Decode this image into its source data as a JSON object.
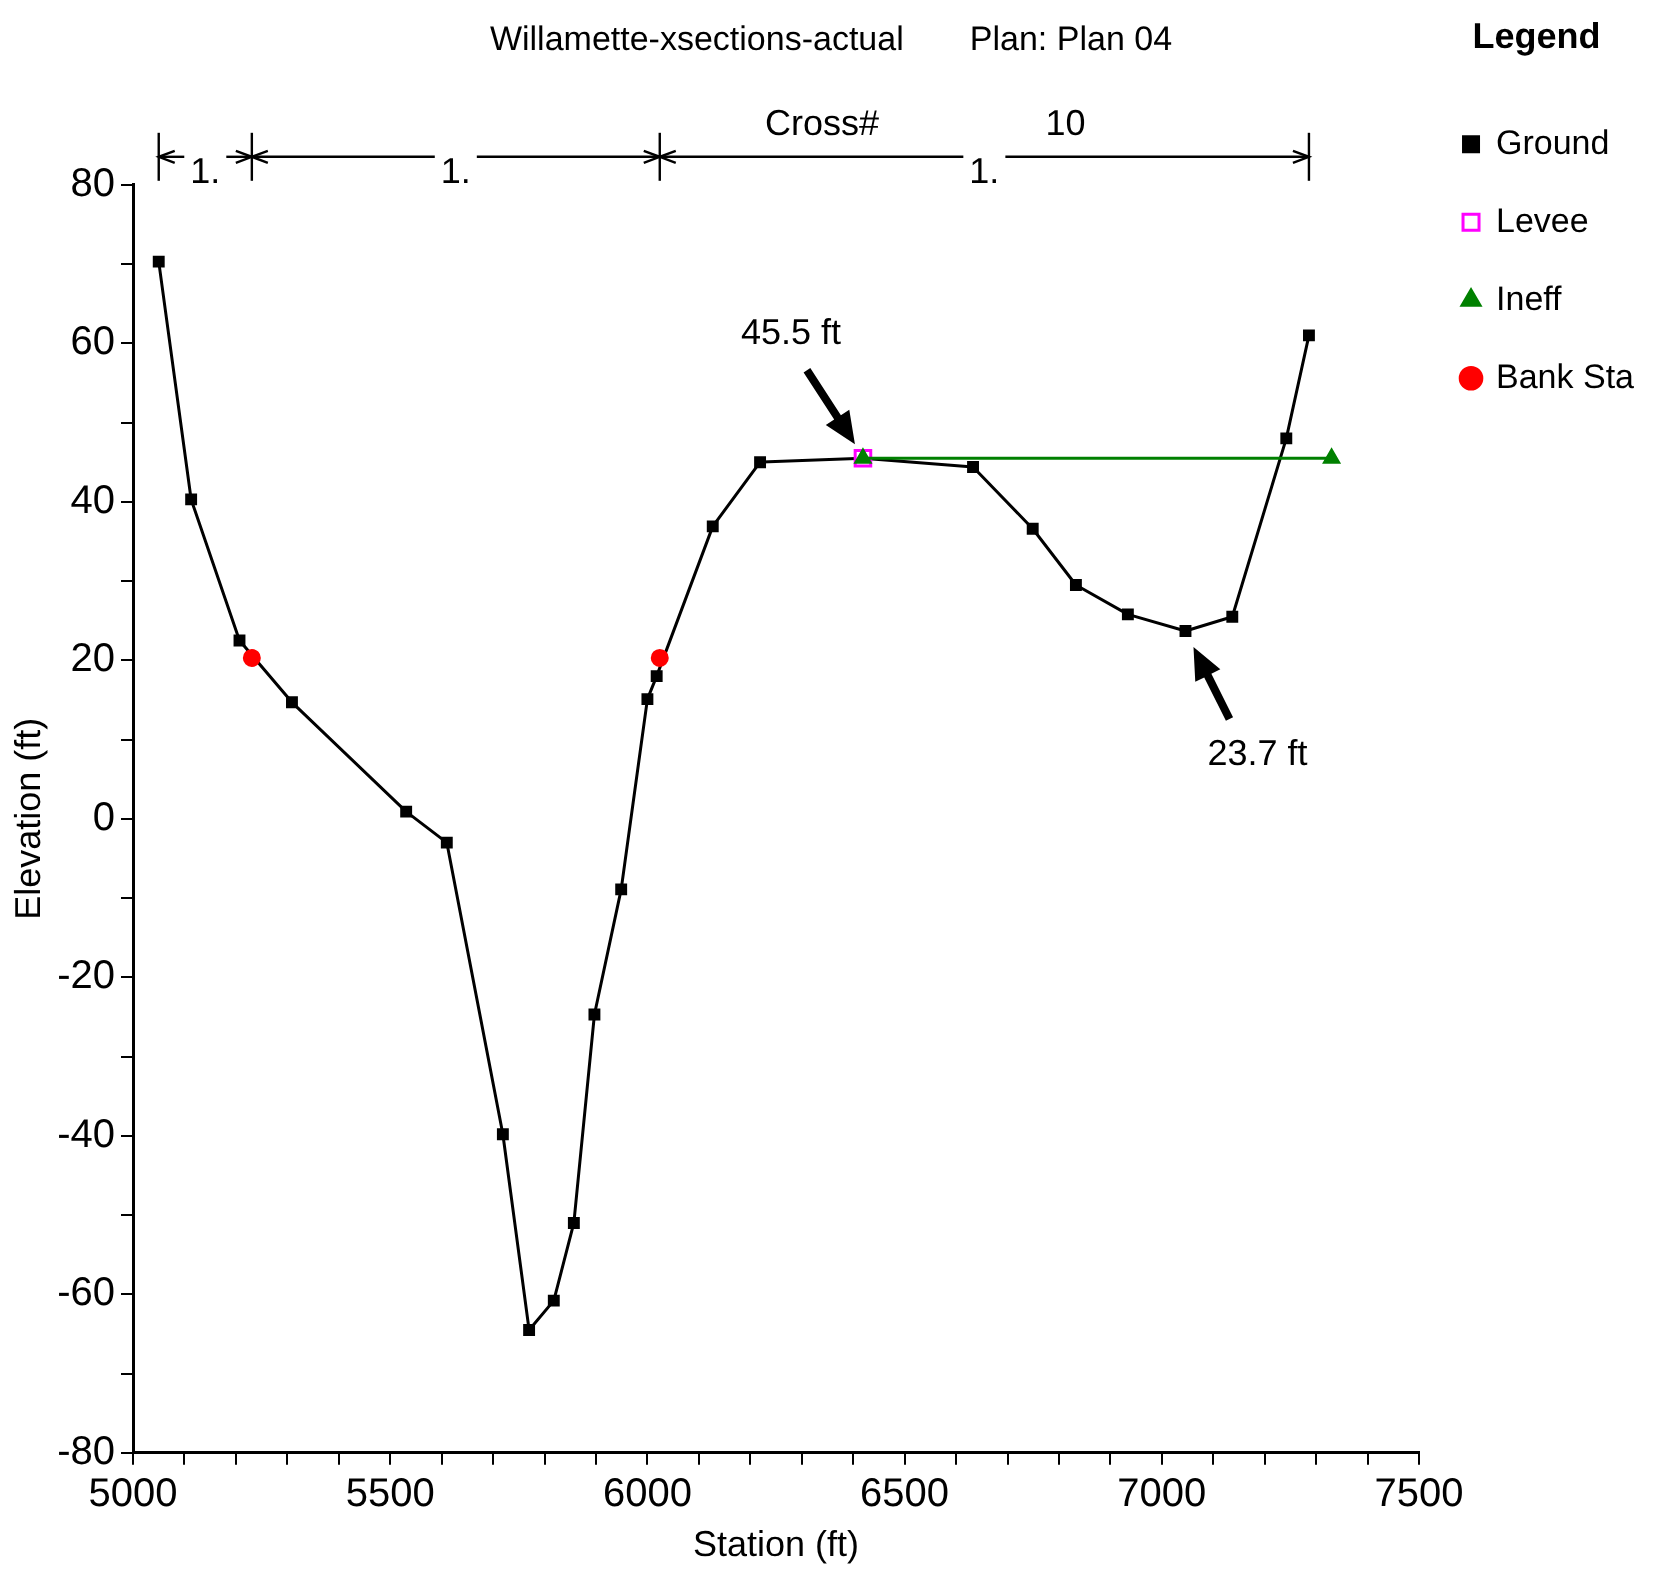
{
  "chart_data": {
    "type": "line",
    "title": "Willamette-xsections-actual       Plan: Plan 04",
    "xlabel": "Station (ft)",
    "ylabel": "Elevation (ft)",
    "legend_title": "Legend",
    "legend": "right",
    "grid": false,
    "xlim": [
      5000,
      7500
    ],
    "ylim": [
      -80,
      80
    ],
    "xticks": [
      5000,
      {
        "value": 5100,
        "label": null
      },
      {
        "value": 5200,
        "label": null
      },
      {
        "value": 5300,
        "label": null
      },
      {
        "value": 5400,
        "label": null
      },
      5500,
      {
        "value": 5600,
        "label": null
      },
      {
        "value": 5700,
        "label": null
      },
      {
        "value": 5800,
        "label": null
      },
      {
        "value": 5900,
        "label": null
      },
      6000,
      {
        "value": 6100,
        "label": null
      },
      {
        "value": 6200,
        "label": null
      },
      {
        "value": 6300,
        "label": null
      },
      {
        "value": 6400,
        "label": null
      },
      6500,
      {
        "value": 6600,
        "label": null
      },
      {
        "value": 6700,
        "label": null
      },
      {
        "value": 6800,
        "label": null
      },
      {
        "value": 6900,
        "label": null
      },
      7000,
      {
        "value": 7100,
        "label": null
      },
      {
        "value": 7200,
        "label": null
      },
      {
        "value": 7300,
        "label": null
      },
      {
        "value": 7400,
        "label": null
      },
      7500
    ],
    "yticks": [
      -80,
      {
        "value": -70,
        "label": null
      },
      -60,
      {
        "value": -50,
        "label": null
      },
      -40,
      {
        "value": -30,
        "label": null
      },
      -20,
      {
        "value": -10,
        "label": null
      },
      0,
      {
        "value": 10,
        "label": null
      },
      20,
      {
        "value": 30,
        "label": null
      },
      40,
      {
        "value": 50,
        "label": null
      },
      60,
      {
        "value": 70,
        "label": null
      },
      80
    ],
    "series": [
      {
        "name": "Ground",
        "type": "line",
        "color": "#000000",
        "marker": "square",
        "line_style": "solid",
        "x": [
          5050,
          5113,
          5207,
          5309,
          5531,
          5610,
          5719,
          5770,
          5818,
          5857,
          5897,
          5949,
          6000,
          6018,
          6127,
          6219,
          6419,
          6633,
          6749,
          6833,
          6934,
          7046,
          7137,
          7242,
          7286
        ],
        "values": [
          70.3,
          40.3,
          22.5,
          14.7,
          0.9,
          -3.0,
          -39.8,
          -64.5,
          -60.8,
          -51.0,
          -24.7,
          -8.9,
          15.1,
          18.0,
          36.9,
          45.0,
          45.5,
          44.4,
          36.6,
          29.5,
          25.8,
          23.7,
          25.5,
          48.0,
          61.0
        ]
      },
      {
        "name": "Levee",
        "type": "scatter",
        "color": "#ff00ff",
        "marker": "square",
        "x": [
          6419
        ],
        "values": [
          45.5
        ]
      },
      {
        "name": "Ineff",
        "type": "line",
        "color": "#008000",
        "marker": "triangle",
        "line_style": "solid",
        "x": [
          6419,
          7330
        ],
        "values": [
          45.5,
          45.5
        ]
      },
      {
        "name": "Bank Sta",
        "type": "scatter",
        "color": "#ff0000",
        "marker": "circle",
        "x": [
          5231,
          6024
        ],
        "values": [
          20.3,
          20.3
        ]
      }
    ],
    "annotations": [
      {
        "text": "45.5 ft",
        "x": 6419,
        "y": 45.5
      },
      {
        "text": "23.7 ft",
        "x": 7046,
        "y": 23.7
      },
      "1.",
      "1.",
      "1.",
      "Cross#",
      "10"
    ]
  }
}
